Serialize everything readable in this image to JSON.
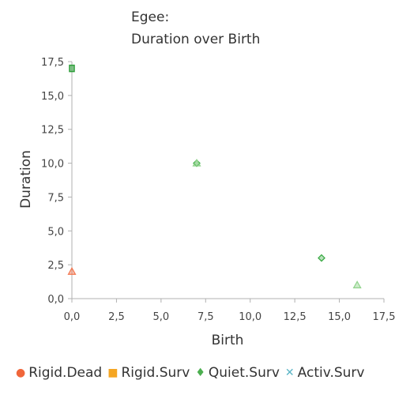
{
  "chart_data": {
    "type": "scatter",
    "title_line1": "Egee:",
    "title_line2": "Duration over Birth",
    "xlabel": "Birth",
    "ylabel": "Duration",
    "xlim": [
      0,
      17.5
    ],
    "ylim": [
      0,
      17.5
    ],
    "xticks": [
      "0,0",
      "2,5",
      "5,0",
      "7,5",
      "10,0",
      "12,5",
      "15,0",
      "17,5"
    ],
    "yticks": [
      "0,0",
      "2,5",
      "5,0",
      "7,5",
      "10,0",
      "12,5",
      "15,0",
      "17,5"
    ],
    "grid": false,
    "legend_position": "bottom",
    "series": [
      {
        "name": "Rigid.Dead",
        "marker": "triangle",
        "color": "#f2764f",
        "points": [
          [
            0,
            2
          ]
        ]
      },
      {
        "name": "Rigid.Surv",
        "marker": "square",
        "color": "#2e9e3a",
        "points": [
          [
            0,
            17
          ]
        ]
      },
      {
        "name": "Quiet.Surv",
        "marker": "diamond",
        "color": "#3aaa44",
        "points": [
          [
            7,
            10
          ],
          [
            14,
            3
          ]
        ]
      },
      {
        "name": "Activ.Surv",
        "marker": "triangle",
        "color": "#8fd28a",
        "points": [
          [
            16,
            1
          ],
          [
            7,
            10
          ]
        ]
      }
    ],
    "legend": [
      {
        "label": "Rigid.Dead",
        "symbol": "●",
        "color": "#f0663a"
      },
      {
        "label": "Rigid.Surv",
        "symbol": "■",
        "color": "#f5a623"
      },
      {
        "label": "Quiet.Surv",
        "symbol": "♦",
        "color": "#4caf50"
      },
      {
        "label": "Activ.Surv",
        "symbol": "✕",
        "color": "#5bb5c6"
      }
    ]
  }
}
